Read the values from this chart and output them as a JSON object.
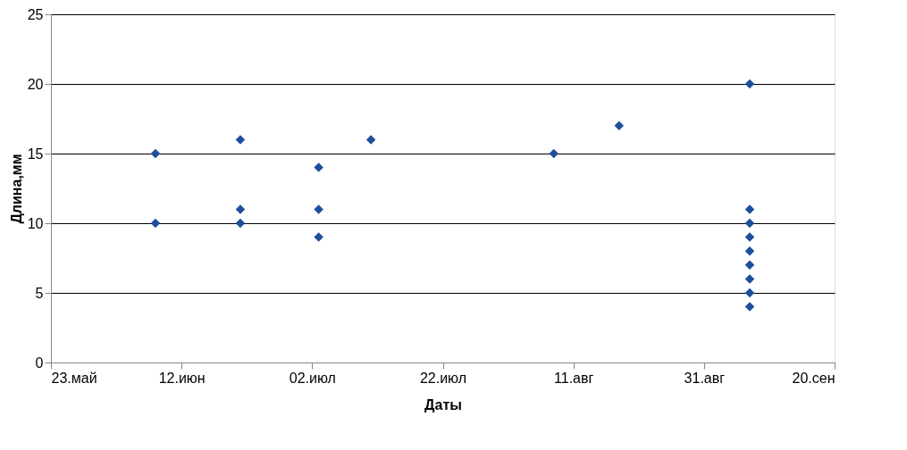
{
  "chart_data": {
    "type": "scatter",
    "xlabel": "Даты",
    "ylabel": "Длина,мм",
    "x": [
      "--06-08",
      "--06-08",
      "--06-21",
      "--06-21",
      "--06-21",
      "--07-03",
      "--07-03",
      "--07-03",
      "--07-11",
      "--08-08",
      "--08-18",
      "--09-07",
      "--09-07",
      "--09-07",
      "--09-07",
      "--09-07",
      "--09-07",
      "--09-07",
      "--09-07",
      "--09-07"
    ],
    "series": [
      {
        "color": "#1f4e9c",
        "values": [
          15,
          10,
          16,
          11,
          10,
          14,
          11,
          9,
          16,
          15,
          17,
          20,
          11,
          10,
          9,
          8,
          7,
          6,
          5,
          4
        ]
      }
    ],
    "xlim": [
      "--05-23",
      "--09-20"
    ],
    "xticks": [
      {
        "value": "--05-23",
        "label": "23.май"
      },
      {
        "value": "--06-12",
        "label": "12.июн"
      },
      {
        "value": "--07-02",
        "label": "02.июл"
      },
      {
        "value": "--07-22",
        "label": "22.июл"
      },
      {
        "value": "--08-11",
        "label": "11.авг"
      },
      {
        "value": "--08-31",
        "label": "31.авг"
      },
      {
        "value": "--09-20",
        "label": "20.сен"
      }
    ],
    "ylim": [
      0,
      25
    ],
    "yticks": [
      0,
      5,
      10,
      15,
      20,
      25
    ],
    "grid": "y",
    "marker": "diamond",
    "legend": false
  }
}
